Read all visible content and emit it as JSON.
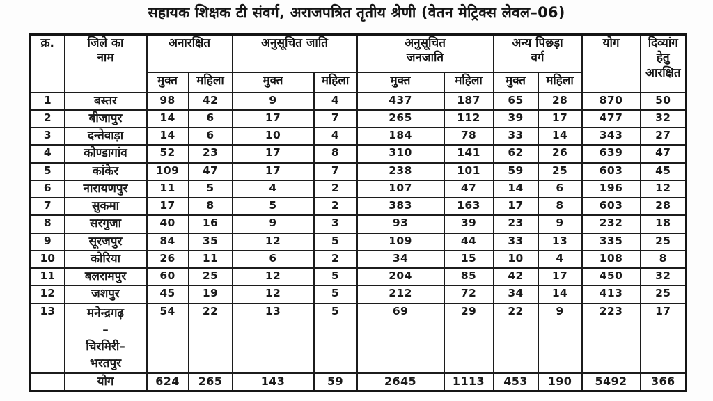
{
  "title": "सहायक शिक्षक टी संवर्ग, अराजपत्रित तृतीय श्रेणी (वेतन मेट्रिक्स लेवल–06)",
  "colors": {
    "ink": "#1a1a1a",
    "paper": "#fdfdfd"
  },
  "table": {
    "headers": {
      "serial": "क्र.",
      "district": "जिले का\nनाम",
      "groups": [
        {
          "label": "अनारक्षित",
          "sub": [
            "मुक्त",
            "महिला"
          ]
        },
        {
          "label": "अनुसूचित जाति",
          "sub": [
            "मुक्त",
            "महिला"
          ]
        },
        {
          "label": "अनुसूचित\nजनजाति",
          "sub": [
            "मुक्त",
            "महिला"
          ]
        },
        {
          "label": "अन्य पिछड़ा\nवर्ग",
          "sub": [
            "मुक्त",
            "महिला"
          ]
        }
      ],
      "total": "योग",
      "disabled": "दिव्यांग\nहेतु\nआरक्षित"
    },
    "rows": [
      {
        "sno": "1",
        "district": "बस्तर",
        "values": [
          "98",
          "42",
          "9",
          "4",
          "437",
          "187",
          "65",
          "28",
          "870",
          "50"
        ]
      },
      {
        "sno": "2",
        "district": "बीजापुर",
        "values": [
          "14",
          "6",
          "17",
          "7",
          "265",
          "112",
          "39",
          "17",
          "477",
          "32"
        ]
      },
      {
        "sno": "3",
        "district": "दन्तेवाड़ा",
        "values": [
          "14",
          "6",
          "10",
          "4",
          "184",
          "78",
          "33",
          "14",
          "343",
          "27"
        ]
      },
      {
        "sno": "4",
        "district": "कोण्डागांव",
        "values": [
          "52",
          "23",
          "17",
          "8",
          "310",
          "141",
          "62",
          "26",
          "639",
          "47"
        ]
      },
      {
        "sno": "5",
        "district": "कांकेर",
        "values": [
          "109",
          "47",
          "17",
          "7",
          "238",
          "101",
          "59",
          "25",
          "603",
          "45"
        ]
      },
      {
        "sno": "6",
        "district": "नारायणपुर",
        "values": [
          "11",
          "5",
          "4",
          "2",
          "107",
          "47",
          "14",
          "6",
          "196",
          "12"
        ]
      },
      {
        "sno": "7",
        "district": "सुकमा",
        "values": [
          "17",
          "8",
          "5",
          "2",
          "383",
          "163",
          "17",
          "8",
          "603",
          "28"
        ]
      },
      {
        "sno": "8",
        "district": "सरगुजा",
        "values": [
          "40",
          "16",
          "9",
          "3",
          "93",
          "39",
          "23",
          "9",
          "232",
          "18"
        ]
      },
      {
        "sno": "9",
        "district": "सूरजपुर",
        "values": [
          "84",
          "35",
          "12",
          "5",
          "109",
          "44",
          "33",
          "13",
          "335",
          "25"
        ]
      },
      {
        "sno": "10",
        "district": "कोरिया",
        "values": [
          "26",
          "11",
          "6",
          "2",
          "34",
          "15",
          "10",
          "4",
          "108",
          "8"
        ]
      },
      {
        "sno": "11",
        "district": "बलरामपुर",
        "values": [
          "60",
          "25",
          "12",
          "5",
          "204",
          "85",
          "42",
          "17",
          "450",
          "32"
        ]
      },
      {
        "sno": "12",
        "district": "जशपुर",
        "values": [
          "45",
          "19",
          "12",
          "5",
          "212",
          "72",
          "34",
          "14",
          "413",
          "25"
        ]
      },
      {
        "sno": "13",
        "district": "मनेन्द्रगढ़\n–\nचिरमिरी–\nभरतपुर",
        "tall": true,
        "values": [
          "54",
          "22",
          "13",
          "5",
          "69",
          "29",
          "22",
          "9",
          "223",
          "17"
        ]
      }
    ],
    "total_row": {
      "label": "योग",
      "values": [
        "624",
        "265",
        "143",
        "59",
        "2645",
        "1113",
        "453",
        "190",
        "5492",
        "366"
      ]
    }
  }
}
